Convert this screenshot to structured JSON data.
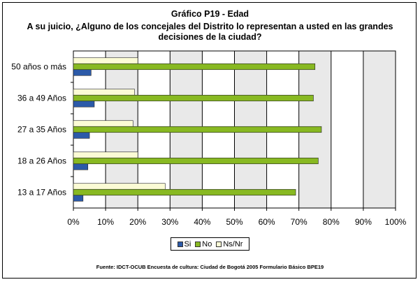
{
  "chart_data": {
    "type": "bar",
    "orientation": "horizontal",
    "title": "Gráfico P19 - Edad",
    "subtitle_line1": "A su juicio, ¿Alguno de los concejales del Distrito lo representan a usted en las grandes",
    "subtitle_line2": "decisiones de la ciudad?",
    "categories": [
      "50 años o más",
      "36 a 49 Años",
      "27 a 35 Años",
      "18 a 26 Años",
      "13 a 17 Años"
    ],
    "series": [
      {
        "name": "Si",
        "color": "#2c5aa8",
        "values": [
          5.5,
          6.5,
          5.0,
          4.5,
          3.0
        ]
      },
      {
        "name": "No",
        "color": "#88b922",
        "values": [
          75.0,
          74.5,
          77.0,
          76.0,
          69.0
        ]
      },
      {
        "name": "Ns/Nr",
        "color": "#fbfbd5",
        "values": [
          20.0,
          19.0,
          18.5,
          20.0,
          28.5
        ]
      }
    ],
    "xlim": [
      0,
      100
    ],
    "xticks": [
      "0%",
      "10%",
      "20%",
      "30%",
      "40%",
      "50%",
      "60%",
      "70%",
      "80%",
      "90%",
      "100%"
    ],
    "grid": true,
    "legend_position": "bottom"
  },
  "source": "Fuente: IDCT-OCUB Encuesta de cultura: Ciudad de Bogotá 2005 Formulario Básico BPE19"
}
